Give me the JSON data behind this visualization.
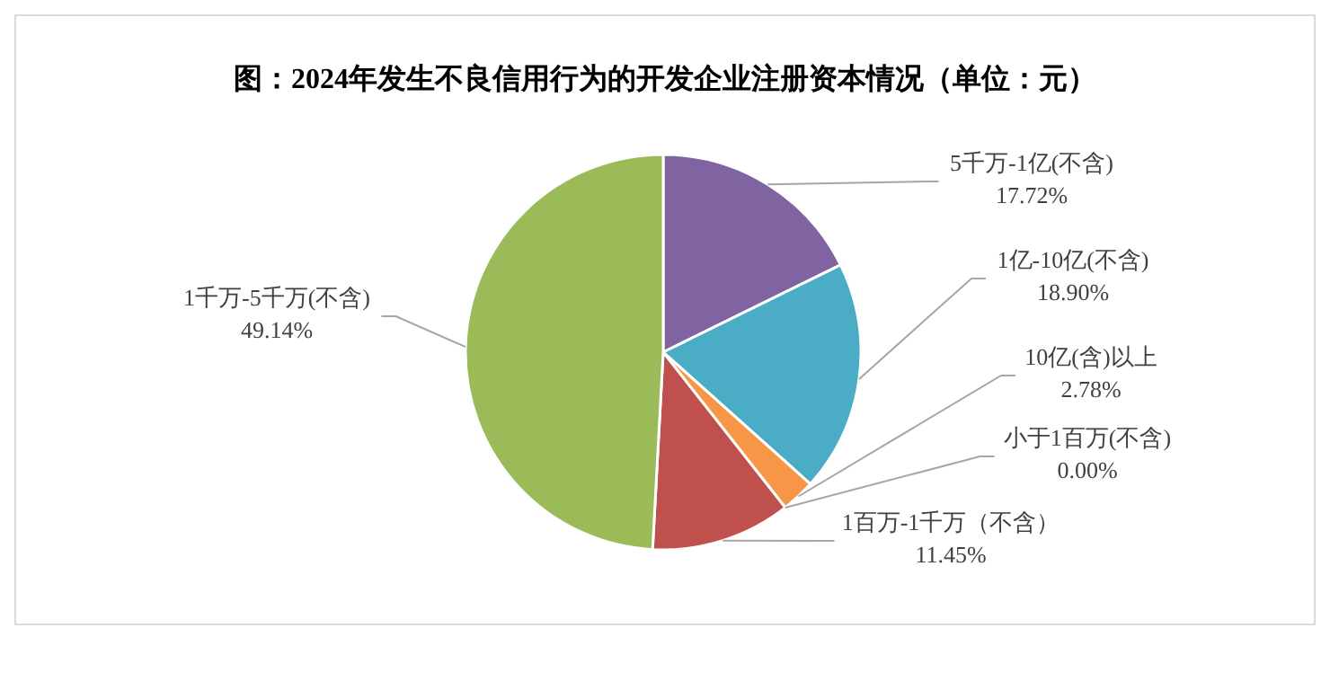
{
  "chart_data": {
    "type": "pie",
    "title": "图：2024年发生不良信用行为的开发企业注册资本情况（单位：元）",
    "categories": [
      "5千万-1亿(不含)",
      "1亿-10亿(不含)",
      "10亿(含)以上",
      "小于1百万(不含)",
      "1百万-1千万（不含）",
      "1千万-5千万(不含)"
    ],
    "values": [
      17.72,
      18.9,
      2.78,
      0.0,
      11.45,
      49.14
    ],
    "value_labels": [
      "17.72%",
      "18.90%",
      "2.78%",
      "0.00%",
      "11.45%",
      "49.14%"
    ],
    "colors": [
      "#8064a2",
      "#4bacc6",
      "#f79646",
      "#4f81bd",
      "#c0504d",
      "#9bbb59"
    ],
    "legend": false
  }
}
